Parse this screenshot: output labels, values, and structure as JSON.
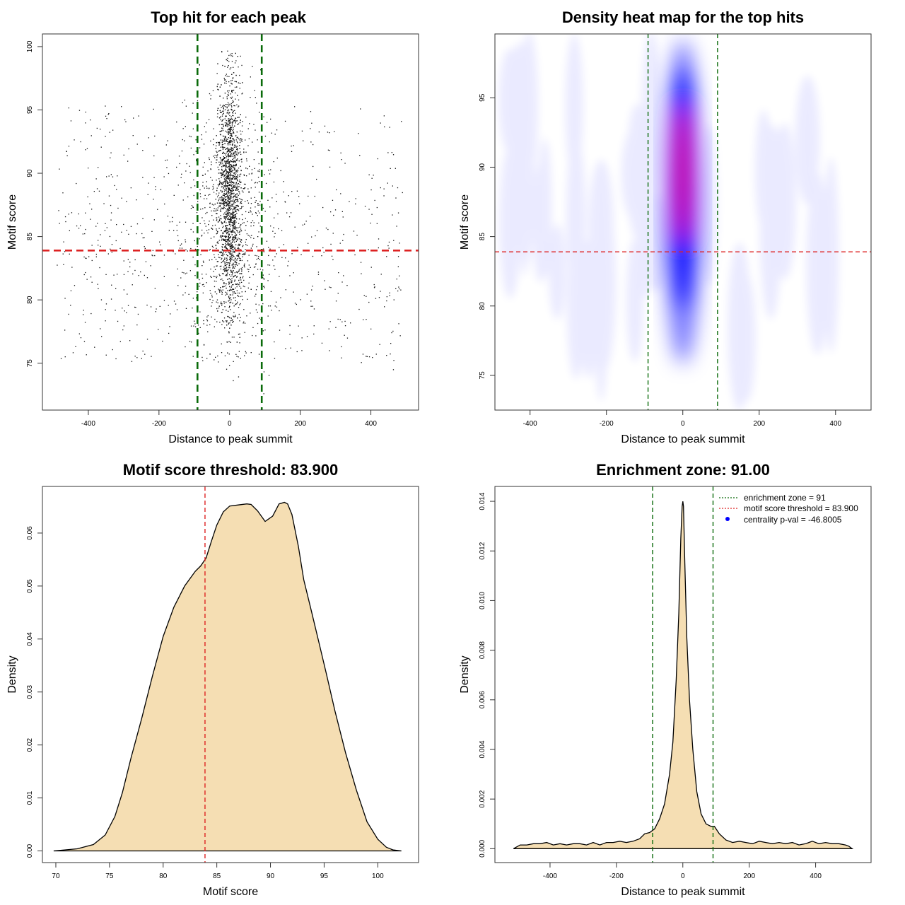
{
  "colors": {
    "threshold_line": "#dd2222",
    "zone_line": "#0b6b0b",
    "density_fill": "#f5deb3",
    "points": "#111111",
    "heat_low": "#ffffff",
    "heat_mid": "#0000ff",
    "heat_high": "#ff0000",
    "legend_marker": "#0000ff"
  },
  "chart_data": [
    {
      "id": "scatter",
      "type": "scatter",
      "title": "Top hit for each peak",
      "xlabel": "Distance to peak summit",
      "ylabel": "Motif score",
      "xlim": [
        -530,
        535
      ],
      "ylim": [
        71.3,
        101
      ],
      "xticks": [
        -400,
        -200,
        0,
        200,
        400
      ],
      "yticks": [
        75,
        80,
        85,
        90,
        95,
        100
      ],
      "threshold": 83.9,
      "zone": [
        -91,
        91
      ],
      "n_points": 3600,
      "note": "points concentrated within ±40 of summit, score range ~72.5–99.7"
    },
    {
      "id": "heatmap",
      "type": "heatmap",
      "title": "Density heat map for the top hits",
      "xlabel": "Distance to peak summit",
      "ylabel": "Motif score",
      "xlim": [
        -492,
        493
      ],
      "ylim": [
        72.5,
        99.6
      ],
      "xticks": [
        -400,
        -200,
        0,
        200,
        400
      ],
      "yticks": [
        75,
        80,
        85,
        90,
        95
      ],
      "threshold": 83.9,
      "zone": [
        -91,
        91
      ],
      "peak_center": {
        "x": 0,
        "y": 89.5
      }
    },
    {
      "id": "score_density",
      "type": "area",
      "title": "Motif score threshold: 83.900",
      "xlabel": "Motif score",
      "ylabel": "Density",
      "xlim": [
        68.75,
        103.8
      ],
      "ylim": [
        -0.0022,
        0.0688
      ],
      "xticks": [
        70,
        75,
        80,
        85,
        90,
        95,
        100
      ],
      "yticks": [
        0.0,
        0.01,
        0.02,
        0.03,
        0.04,
        0.05,
        0.06
      ],
      "ytick_labels": [
        "0.00",
        "0.01",
        "0.02",
        "0.03",
        "0.04",
        "0.05",
        "0.06"
      ],
      "threshold": 83.9,
      "x": [
        69.8,
        72,
        73.5,
        74.6,
        75.5,
        76.2,
        77,
        78,
        79,
        80,
        81,
        82,
        83,
        83.5,
        84,
        84.5,
        85,
        85.6,
        86.2,
        87,
        87.8,
        88.2,
        88.8,
        89.5,
        90.2,
        90.8,
        91.3,
        91.6,
        92,
        92.6,
        93.1,
        93.8,
        94.5,
        95.2,
        96,
        97,
        98,
        99,
        100,
        100.8,
        101.4,
        102.2
      ],
      "y": [
        0.0,
        0.0004,
        0.0012,
        0.003,
        0.0065,
        0.011,
        0.0175,
        0.025,
        0.033,
        0.0405,
        0.046,
        0.05,
        0.0528,
        0.0538,
        0.0553,
        0.0585,
        0.0615,
        0.064,
        0.0651,
        0.0653,
        0.0655,
        0.0654,
        0.0642,
        0.0622,
        0.0632,
        0.0655,
        0.0658,
        0.0655,
        0.0635,
        0.0575,
        0.0512,
        0.0454,
        0.0395,
        0.0335,
        0.0265,
        0.0185,
        0.0115,
        0.0055,
        0.0022,
        0.0007,
        0.0002,
        0.0
      ]
    },
    {
      "id": "distance_density",
      "type": "area",
      "title": "Enrichment zone: 91.00",
      "xlabel": "Distance to peak summit",
      "ylabel": "Density",
      "xlim": [
        -566,
        567
      ],
      "ylim": [
        -0.00056,
        0.0146
      ],
      "xticks": [
        -400,
        -200,
        0,
        200,
        400
      ],
      "yticks": [
        0.0,
        0.002,
        0.004,
        0.006,
        0.008,
        0.01,
        0.012,
        0.014
      ],
      "ytick_labels": [
        "0.000",
        "0.002",
        "0.004",
        "0.006",
        "0.008",
        "0.010",
        "0.012",
        "0.014"
      ],
      "zone": [
        -91,
        91
      ],
      "threshold": 83.9,
      "x": [
        -510,
        -490,
        -470,
        -450,
        -430,
        -410,
        -390,
        -370,
        -350,
        -330,
        -310,
        -290,
        -270,
        -250,
        -230,
        -210,
        -190,
        -170,
        -150,
        -130,
        -115,
        -100,
        -85,
        -70,
        -55,
        -40,
        -30,
        -20,
        -12,
        -6,
        -2,
        0,
        2,
        6,
        12,
        20,
        30,
        42,
        55,
        70,
        85,
        95,
        110,
        130,
        150,
        170,
        190,
        210,
        230,
        250,
        270,
        290,
        310,
        330,
        350,
        370,
        390,
        410,
        430,
        450,
        470,
        490,
        500,
        510
      ],
      "y": [
        0.0,
        0.00015,
        0.00015,
        0.0002,
        0.0002,
        0.00025,
        0.00015,
        0.0002,
        0.00015,
        0.0002,
        0.0002,
        0.00015,
        0.00025,
        0.00015,
        0.00025,
        0.00025,
        0.0003,
        0.00025,
        0.0003,
        0.0004,
        0.0006,
        0.00065,
        0.0008,
        0.0012,
        0.0018,
        0.003,
        0.0043,
        0.0068,
        0.0095,
        0.0125,
        0.0138,
        0.014,
        0.0138,
        0.0115,
        0.0085,
        0.006,
        0.004,
        0.0023,
        0.0014,
        0.001,
        0.0009,
        0.0009,
        0.0006,
        0.00035,
        0.00025,
        0.0003,
        0.00025,
        0.0002,
        0.0003,
        0.00025,
        0.0002,
        0.00025,
        0.0002,
        0.00025,
        0.00015,
        0.0002,
        0.0003,
        0.0002,
        0.00025,
        0.0002,
        0.0002,
        0.00015,
        0.0001,
        0.0
      ],
      "legend": [
        {
          "label": "enrichment zone = 91",
          "style": "dotted",
          "color": "#0b6b0b"
        },
        {
          "label": "motif score threshold = 83.900",
          "style": "dotted",
          "color": "#dd2222"
        },
        {
          "label": "centrality p-val = -46.8005",
          "style": "point",
          "color": "#0000ff"
        }
      ]
    }
  ]
}
